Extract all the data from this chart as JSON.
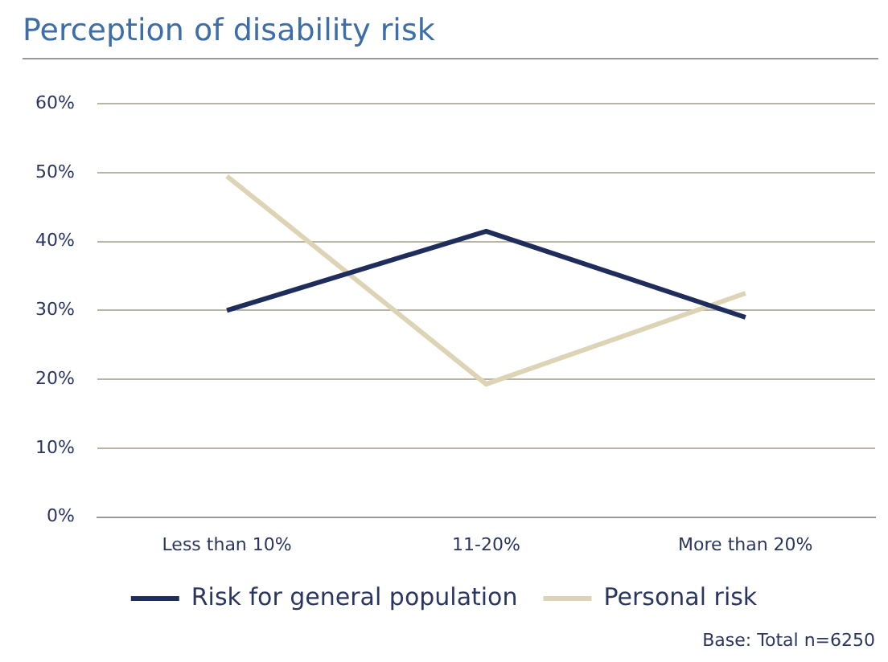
{
  "chart_data": {
    "type": "line",
    "title": "Perception of disability risk",
    "categories": [
      "Less than 10%",
      "11-20%",
      "More than 20%"
    ],
    "series": [
      {
        "name": "Risk for general population",
        "color": "#1f2d5c",
        "values": [
          30,
          41.5,
          29
        ]
      },
      {
        "name": "Personal risk",
        "color": "#ddd3b5",
        "values": [
          49.5,
          19.3,
          32.5
        ]
      }
    ],
    "ylim": [
      0,
      60
    ],
    "yticks": [
      {
        "value": 0,
        "label": "0%"
      },
      {
        "value": 10,
        "label": "10%"
      },
      {
        "value": 20,
        "label": "20%"
      },
      {
        "value": 30,
        "label": "30%"
      },
      {
        "value": 40,
        "label": "40%"
      },
      {
        "value": 50,
        "label": "50%"
      },
      {
        "value": 60,
        "label": "60%"
      }
    ],
    "grid": "y",
    "legend": "bottom",
    "marker": "none",
    "line_style": "solid",
    "annotations": [
      "Base: Total n=6250"
    ]
  }
}
